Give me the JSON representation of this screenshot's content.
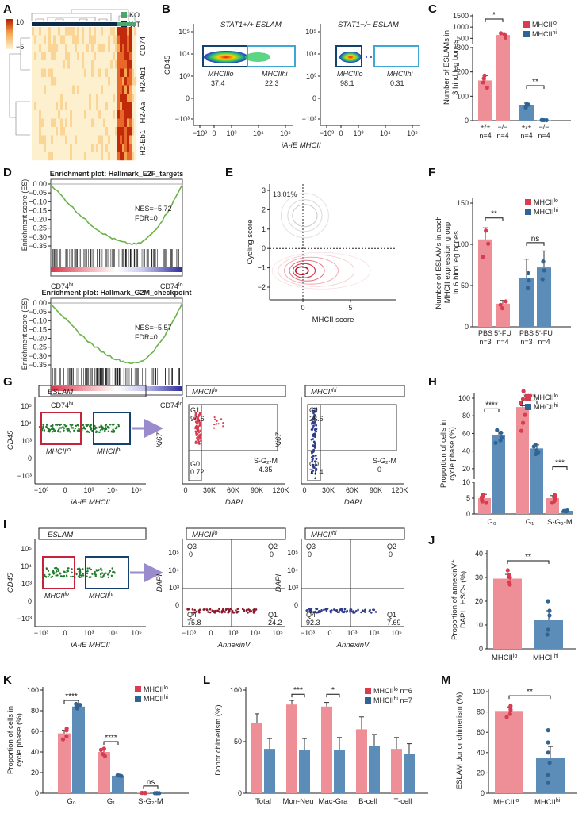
{
  "colors": {
    "lo": "#ee8f97",
    "hi": "#5b8db8",
    "lo_dot": "#d93b50",
    "hi_dot": "#2f6494",
    "ko": "#4aa86a",
    "wt": "#0d2a47",
    "gsea": "#6ab24a",
    "arrow": "#9a8ccc"
  },
  "panels": {
    "A": {
      "letter": "A",
      "legend_max": "10",
      "legend_min": "−5",
      "group_legend": [
        "KO",
        "WT"
      ],
      "genes": [
        "CD74",
        "H2-Ab1",
        "H2-Aa",
        "H2-Eb1"
      ]
    },
    "B": {
      "letter": "B",
      "left_title": "STAT1+/+ ESLAM",
      "right_title": "STAT1−/− ESLAM",
      "ylabel": "CD45",
      "xlabel": "iA-iE MHCII",
      "left_gates": {
        "lo_label": "MHCIIlo",
        "lo_value": "37.4",
        "hi_label": "MHCIIhi",
        "hi_value": "22.3"
      },
      "right_gates": {
        "lo_label": "MHCIIlo",
        "lo_value": "98.1",
        "hi_label": "MHCIIhi",
        "hi_value": "0.31"
      },
      "yticks": [
        "10⁵",
        "10⁴",
        "10³",
        "0",
        "−10³"
      ],
      "xticks": [
        "−10³",
        "0",
        "10³",
        "10⁴",
        "10⁵"
      ]
    },
    "C": {
      "letter": "C",
      "legend": [
        "MHCIIlo",
        "MHCIIhi"
      ],
      "ylabel": "Number of ESLAMs in 3 hind leg bones",
      "yticks": [
        "0",
        "100",
        "200",
        "300",
        "500",
        "1000",
        "1500"
      ],
      "xcats": [
        "+/+",
        "−/−",
        "+/+",
        "−/−"
      ],
      "ns": [
        "n=4",
        "n=4",
        "n=4",
        "n=4"
      ],
      "sig": [
        "*",
        "**"
      ]
    },
    "D": {
      "letter": "D",
      "top_title": "Enrichment plot: Hallmark_E2F_targets",
      "top_nes": "NES=−5.72",
      "top_fdr": "FDR=0",
      "bottom_title": "Enrichment plot: Hallmark_G2M_checkpoint",
      "bottom_nes": "NES=−5.57",
      "bottom_fdr": "FDR=0",
      "ylabel": "Enrichment score (ES)",
      "yticks": [
        "0.00",
        "−0.05",
        "−0.10",
        "−0.15",
        "−0.20",
        "−0.25",
        "−0.30",
        "−0.35"
      ],
      "left_end": "CD74hi",
      "right_end": "CD74lo"
    },
    "E": {
      "letter": "E",
      "pct": "13.01%",
      "xlabel": "MHCII score",
      "ylabel": "Cycling score",
      "xticks": [
        "0",
        "5"
      ],
      "yticks": [
        "3",
        "2",
        "1",
        "0",
        "−1",
        "−2"
      ]
    },
    "F": {
      "letter": "F",
      "legend": [
        "MHCIIlo",
        "MHCIIhi"
      ],
      "ylabel": "Number of ESLAMs in each MHCII expression group in 6 hind leg bones",
      "yticks": [
        "0",
        "50",
        "100",
        "150"
      ],
      "xcats": [
        "PBS",
        "5′-FU",
        "PBS",
        "5′-FU"
      ],
      "ns": [
        "n=3",
        "n=4",
        "n=3",
        "n=4"
      ],
      "sig": [
        "**",
        "ns"
      ]
    },
    "G": {
      "letter": "G",
      "eslam": "ESLAM",
      "ylabel": "CD45",
      "xlabel": "iA-iE MHCII",
      "lo": "MHCIIlo",
      "hi": "MHCIIhi",
      "ki_title_lo": "MHCIIlo",
      "ki_title_hi": "MHCIIhi",
      "ki_ylabel": "Ki67",
      "ki_xlabel": "DAPI",
      "lo_vals": {
        "g1": "G1",
        "g1v": "94.6",
        "g0": "G0",
        "g0v": "0.72",
        "s": "S-G₂-M",
        "sv": "4.35"
      },
      "hi_vals": {
        "g1": "G1",
        "g1v": "28.6",
        "g0": "G0",
        "g0v": "71.4",
        "s": "S-G₂-M",
        "sv": "0"
      },
      "dapi_ticks": [
        "0",
        "30K",
        "60K",
        "90K",
        "120K"
      ],
      "yticks": [
        "10⁵",
        "10⁴",
        "10³",
        "0",
        "−10³"
      ]
    },
    "H": {
      "letter": "H",
      "legend": [
        "MHCIIlo",
        "MHCIIhi"
      ],
      "ylabel": "Proportion of cells in cycle phase (%)",
      "yticks": [
        "0",
        "5",
        "10",
        "20",
        "40",
        "60",
        "80",
        "100"
      ],
      "xcats": [
        "G₀",
        "G₁",
        "S-G₂-M"
      ],
      "sig": [
        "****",
        "****",
        "***"
      ]
    },
    "I": {
      "letter": "I",
      "eslam": "ESLAM",
      "ylabel": "CD45",
      "xlabel": "iA-iE MHCII",
      "lo": "MHCIIlo",
      "hi": "MHCIIhi",
      "an_ylabel": "DAPI",
      "an_xlabel": "AnnexinV",
      "lo_vals": {
        "q3": "Q3",
        "q3v": "0",
        "q2": "Q2",
        "q2v": "0",
        "q4": "Q4",
        "q4v": "75.8",
        "q1": "Q1",
        "q1v": "24.2"
      },
      "hi_vals": {
        "q3": "Q3",
        "q3v": "0",
        "q2": "Q2",
        "q2v": "0",
        "q4": "Q4",
        "q4v": "92.3",
        "q1": "Q1",
        "q1v": "7.69"
      }
    },
    "J": {
      "letter": "J",
      "ylabel": "Proportion of annexinV+ DAPI− HSCs (%)",
      "yticks": [
        "0",
        "10",
        "20",
        "30",
        "40"
      ],
      "xcats": [
        "MHCIIlo",
        "MHCIIhi"
      ],
      "sig": "**"
    },
    "K": {
      "letter": "K",
      "legend": [
        "MHCIIlo",
        "MHCIIhi"
      ],
      "ylabel": "Proportion of cells in cycle phase (%)",
      "yticks": [
        "0",
        "20",
        "40",
        "60",
        "80",
        "100"
      ],
      "xcats": [
        "G₀",
        "G₁",
        "S-G₂-M"
      ],
      "sig": [
        "****",
        "****",
        "ns"
      ]
    },
    "L": {
      "letter": "L",
      "legend": [
        "MHCIIlo n=6",
        "MHCIIhi n=7"
      ],
      "ylabel": "Donor chimerism (%)",
      "yticks": [
        "0",
        "50",
        "100"
      ],
      "xcats": [
        "Total",
        "Mon-Neu",
        "Mac-Gra",
        "B-cell",
        "T-cell"
      ],
      "sig": [
        "***",
        "*"
      ]
    },
    "M": {
      "letter": "M",
      "ylabel": "ESLAM donor chimerism (%)",
      "yticks": [
        "0",
        "20",
        "40",
        "60",
        "80",
        "100"
      ],
      "xcats": [
        "MHCIIlo",
        "MHCIIhi"
      ],
      "sig": "**"
    }
  },
  "chart_data": [
    {
      "panel": "C",
      "type": "bar",
      "categories": [
        "+/+ MHCIIlo",
        "−/− MHCIIlo",
        "+/+ MHCIIhi",
        "−/− MHCIIhi"
      ],
      "values": [
        165,
        650,
        62,
        2
      ],
      "errors": [
        20,
        100,
        10,
        1
      ],
      "ylabel": "Number of ESLAMs in 3 hind leg bones"
    },
    {
      "panel": "F",
      "type": "bar",
      "categories": [
        "PBS MHCIIlo",
        "5′-FU MHCIIlo",
        "PBS MHCIIhi",
        "5′-FU MHCIIhi"
      ],
      "values": [
        106,
        28,
        59,
        72
      ],
      "errors": [
        14,
        4,
        23,
        20
      ],
      "ylim": [
        0,
        150
      ]
    },
    {
      "panel": "H",
      "type": "bar",
      "categories": [
        "G0",
        "G1",
        "S-G2-M"
      ],
      "series": [
        {
          "name": "MHCIIlo",
          "values": [
            5,
            90,
            5
          ],
          "errors": [
            1.2,
            1.5,
            0.8
          ]
        },
        {
          "name": "MHCIIhi",
          "values": [
            58,
            43,
            1
          ],
          "errors": [
            4,
            4,
            0.4
          ]
        }
      ]
    },
    {
      "panel": "J",
      "type": "bar",
      "categories": [
        "MHCIIlo",
        "MHCIIhi"
      ],
      "values": [
        29.5,
        12
      ],
      "errors": [
        1.8,
        4
      ],
      "ylim": [
        0,
        40
      ]
    },
    {
      "panel": "K",
      "type": "bar",
      "categories": [
        "G0",
        "G1",
        "S-G2-M"
      ],
      "series": [
        {
          "name": "MHCIIlo",
          "values": [
            58,
            40,
            0.3
          ],
          "errors": [
            3,
            3,
            0.2
          ]
        },
        {
          "name": "MHCIIhi",
          "values": [
            84,
            17,
            0.1
          ],
          "errors": [
            1.5,
            1,
            0.1
          ]
        }
      ],
      "ylim": [
        0,
        100
      ]
    },
    {
      "panel": "L",
      "type": "bar",
      "categories": [
        "Total",
        "Mon-Neu",
        "Mac-Gra",
        "B-cell",
        "T-cell"
      ],
      "series": [
        {
          "name": "MHCIIlo",
          "values": [
            68,
            86,
            84,
            62,
            43
          ],
          "errors": [
            9,
            4,
            4,
            12,
            11
          ]
        },
        {
          "name": "MHCIIhi",
          "values": [
            43,
            42,
            42,
            46,
            38
          ],
          "errors": [
            10,
            11,
            12,
            11,
            10
          ]
        }
      ],
      "ylim": [
        0,
        100
      ]
    },
    {
      "panel": "M",
      "type": "bar",
      "categories": [
        "MHCIIlo",
        "MHCIIhi"
      ],
      "values": [
        81,
        35
      ],
      "errors": [
        4,
        11
      ],
      "ylim": [
        0,
        100
      ]
    }
  ]
}
